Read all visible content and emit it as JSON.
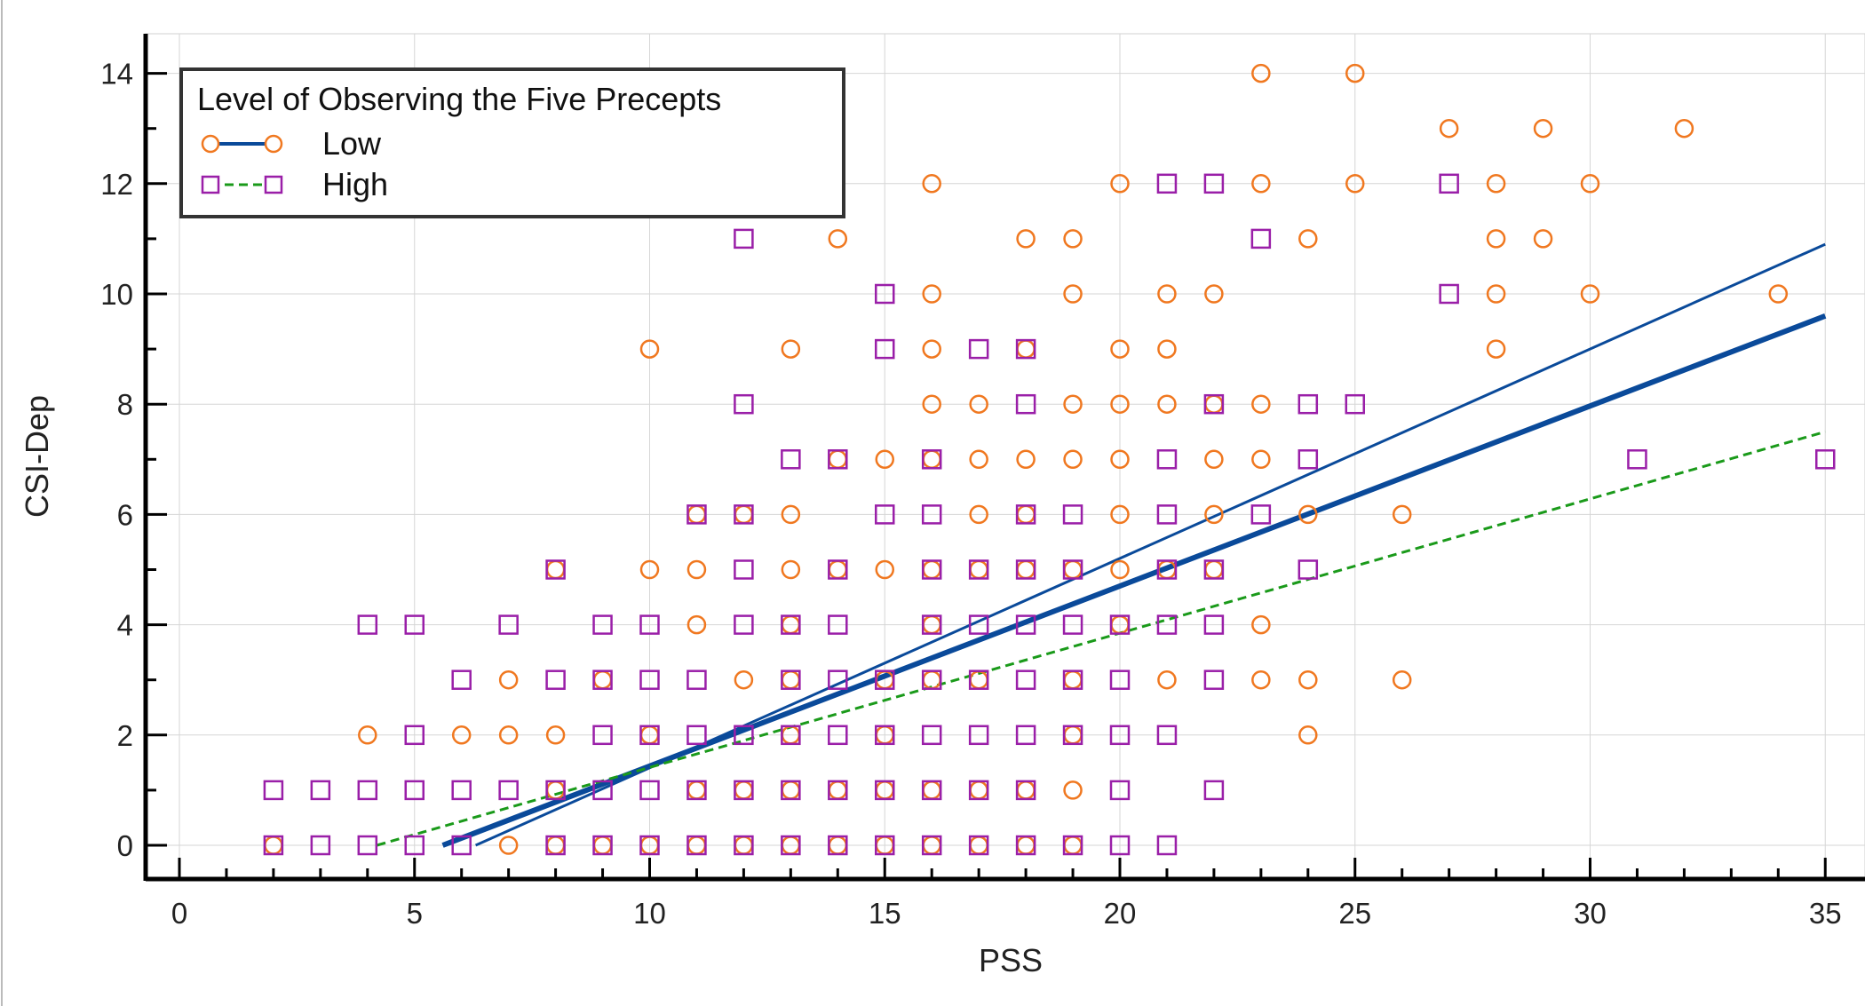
{
  "chart_data": {
    "type": "scatter",
    "xlabel": "PSS",
    "ylabel": "CSI-Dep",
    "xlim": [
      0,
      35
    ],
    "ylim": [
      0,
      14
    ],
    "x_ticks": [
      0,
      5,
      10,
      15,
      20,
      25,
      30,
      35
    ],
    "y_ticks": [
      0,
      2,
      4,
      6,
      8,
      10,
      12,
      14
    ],
    "grid": true,
    "legend": {
      "title": "Level of Observing the Five Precepts",
      "placement": "top-left"
    },
    "series": [
      {
        "name": "Low",
        "marker": "circle",
        "color": "#f07820",
        "line_color": "#0a4a9a",
        "line_style": "solid",
        "points": [
          [
            2,
            0
          ],
          [
            7,
            0
          ],
          [
            8,
            0
          ],
          [
            9,
            0
          ],
          [
            10,
            0
          ],
          [
            11,
            0
          ],
          [
            12,
            0
          ],
          [
            13,
            0
          ],
          [
            14,
            0
          ],
          [
            15,
            0
          ],
          [
            16,
            0
          ],
          [
            17,
            0
          ],
          [
            18,
            0
          ],
          [
            19,
            0
          ],
          [
            8,
            1
          ],
          [
            11,
            1
          ],
          [
            12,
            1
          ],
          [
            13,
            1
          ],
          [
            14,
            1
          ],
          [
            15,
            1
          ],
          [
            16,
            1
          ],
          [
            17,
            1
          ],
          [
            18,
            1
          ],
          [
            19,
            1
          ],
          [
            4,
            2
          ],
          [
            6,
            2
          ],
          [
            7,
            2
          ],
          [
            8,
            2
          ],
          [
            10,
            2
          ],
          [
            13,
            2
          ],
          [
            15,
            2
          ],
          [
            19,
            2
          ],
          [
            24,
            2
          ],
          [
            7,
            3
          ],
          [
            9,
            3
          ],
          [
            12,
            3
          ],
          [
            13,
            3
          ],
          [
            15,
            3
          ],
          [
            16,
            3
          ],
          [
            17,
            3
          ],
          [
            19,
            3
          ],
          [
            21,
            3
          ],
          [
            23,
            3
          ],
          [
            24,
            3
          ],
          [
            26,
            3
          ],
          [
            11,
            4
          ],
          [
            13,
            4
          ],
          [
            16,
            4
          ],
          [
            20,
            4
          ],
          [
            23,
            4
          ],
          [
            8,
            5
          ],
          [
            10,
            5
          ],
          [
            11,
            5
          ],
          [
            13,
            5
          ],
          [
            14,
            5
          ],
          [
            15,
            5
          ],
          [
            16,
            5
          ],
          [
            17,
            5
          ],
          [
            18,
            5
          ],
          [
            19,
            5
          ],
          [
            20,
            5
          ],
          [
            21,
            5
          ],
          [
            22,
            5
          ],
          [
            11,
            6
          ],
          [
            12,
            6
          ],
          [
            13,
            6
          ],
          [
            17,
            6
          ],
          [
            18,
            6
          ],
          [
            20,
            6
          ],
          [
            22,
            6
          ],
          [
            24,
            6
          ],
          [
            26,
            6
          ],
          [
            14,
            7
          ],
          [
            15,
            7
          ],
          [
            16,
            7
          ],
          [
            17,
            7
          ],
          [
            18,
            7
          ],
          [
            19,
            7
          ],
          [
            20,
            7
          ],
          [
            22,
            7
          ],
          [
            23,
            7
          ],
          [
            16,
            8
          ],
          [
            17,
            8
          ],
          [
            19,
            8
          ],
          [
            20,
            8
          ],
          [
            21,
            8
          ],
          [
            22,
            8
          ],
          [
            23,
            8
          ],
          [
            10,
            9
          ],
          [
            13,
            9
          ],
          [
            16,
            9
          ],
          [
            18,
            9
          ],
          [
            20,
            9
          ],
          [
            21,
            9
          ],
          [
            28,
            9
          ],
          [
            16,
            10
          ],
          [
            19,
            10
          ],
          [
            21,
            10
          ],
          [
            22,
            10
          ],
          [
            28,
            10
          ],
          [
            30,
            10
          ],
          [
            34,
            10
          ],
          [
            14,
            11
          ],
          [
            18,
            11
          ],
          [
            19,
            11
          ],
          [
            24,
            11
          ],
          [
            28,
            11
          ],
          [
            29,
            11
          ],
          [
            16,
            12
          ],
          [
            20,
            12
          ],
          [
            23,
            12
          ],
          [
            25,
            12
          ],
          [
            28,
            12
          ],
          [
            30,
            12
          ],
          [
            27,
            13
          ],
          [
            29,
            13
          ],
          [
            32,
            13
          ],
          [
            23,
            14
          ],
          [
            25,
            14
          ]
        ],
        "fit_lines": [
          [
            [
              5.6,
              0
            ],
            [
              35,
              9.6
            ]
          ],
          [
            [
              6.3,
              0
            ],
            [
              35,
              10.9
            ]
          ]
        ]
      },
      {
        "name": "High",
        "marker": "square",
        "color": "#9a1fa8",
        "line_color": "#1a9a1a",
        "line_style": "dashed",
        "points": [
          [
            2,
            0
          ],
          [
            3,
            0
          ],
          [
            4,
            0
          ],
          [
            5,
            0
          ],
          [
            6,
            0
          ],
          [
            8,
            0
          ],
          [
            9,
            0
          ],
          [
            10,
            0
          ],
          [
            11,
            0
          ],
          [
            12,
            0
          ],
          [
            13,
            0
          ],
          [
            14,
            0
          ],
          [
            15,
            0
          ],
          [
            16,
            0
          ],
          [
            17,
            0
          ],
          [
            18,
            0
          ],
          [
            19,
            0
          ],
          [
            20,
            0
          ],
          [
            21,
            0
          ],
          [
            2,
            1
          ],
          [
            3,
            1
          ],
          [
            4,
            1
          ],
          [
            5,
            1
          ],
          [
            6,
            1
          ],
          [
            7,
            1
          ],
          [
            8,
            1
          ],
          [
            9,
            1
          ],
          [
            10,
            1
          ],
          [
            11,
            1
          ],
          [
            12,
            1
          ],
          [
            13,
            1
          ],
          [
            14,
            1
          ],
          [
            15,
            1
          ],
          [
            16,
            1
          ],
          [
            17,
            1
          ],
          [
            18,
            1
          ],
          [
            20,
            1
          ],
          [
            22,
            1
          ],
          [
            5,
            2
          ],
          [
            9,
            2
          ],
          [
            10,
            2
          ],
          [
            11,
            2
          ],
          [
            12,
            2
          ],
          [
            13,
            2
          ],
          [
            14,
            2
          ],
          [
            15,
            2
          ],
          [
            16,
            2
          ],
          [
            17,
            2
          ],
          [
            18,
            2
          ],
          [
            19,
            2
          ],
          [
            20,
            2
          ],
          [
            21,
            2
          ],
          [
            6,
            3
          ],
          [
            8,
            3
          ],
          [
            9,
            3
          ],
          [
            10,
            3
          ],
          [
            11,
            3
          ],
          [
            13,
            3
          ],
          [
            14,
            3
          ],
          [
            15,
            3
          ],
          [
            16,
            3
          ],
          [
            17,
            3
          ],
          [
            18,
            3
          ],
          [
            19,
            3
          ],
          [
            20,
            3
          ],
          [
            22,
            3
          ],
          [
            4,
            4
          ],
          [
            5,
            4
          ],
          [
            7,
            4
          ],
          [
            9,
            4
          ],
          [
            10,
            4
          ],
          [
            12,
            4
          ],
          [
            13,
            4
          ],
          [
            14,
            4
          ],
          [
            16,
            4
          ],
          [
            17,
            4
          ],
          [
            18,
            4
          ],
          [
            19,
            4
          ],
          [
            20,
            4
          ],
          [
            21,
            4
          ],
          [
            22,
            4
          ],
          [
            8,
            5
          ],
          [
            12,
            5
          ],
          [
            14,
            5
          ],
          [
            16,
            5
          ],
          [
            17,
            5
          ],
          [
            18,
            5
          ],
          [
            19,
            5
          ],
          [
            21,
            5
          ],
          [
            22,
            5
          ],
          [
            24,
            5
          ],
          [
            11,
            6
          ],
          [
            12,
            6
          ],
          [
            15,
            6
          ],
          [
            16,
            6
          ],
          [
            18,
            6
          ],
          [
            19,
            6
          ],
          [
            21,
            6
          ],
          [
            23,
            6
          ],
          [
            13,
            7
          ],
          [
            14,
            7
          ],
          [
            16,
            7
          ],
          [
            21,
            7
          ],
          [
            24,
            7
          ],
          [
            31,
            7
          ],
          [
            35,
            7
          ],
          [
            12,
            8
          ],
          [
            18,
            8
          ],
          [
            22,
            8
          ],
          [
            24,
            8
          ],
          [
            25,
            8
          ],
          [
            15,
            9
          ],
          [
            17,
            9
          ],
          [
            18,
            9
          ],
          [
            15,
            10
          ],
          [
            27,
            10
          ],
          [
            12,
            11
          ],
          [
            23,
            11
          ],
          [
            21,
            12
          ],
          [
            22,
            12
          ],
          [
            27,
            12
          ]
        ],
        "fit_lines": [
          [
            [
              4.2,
              0
            ],
            [
              35,
              7.5
            ]
          ]
        ]
      }
    ]
  }
}
